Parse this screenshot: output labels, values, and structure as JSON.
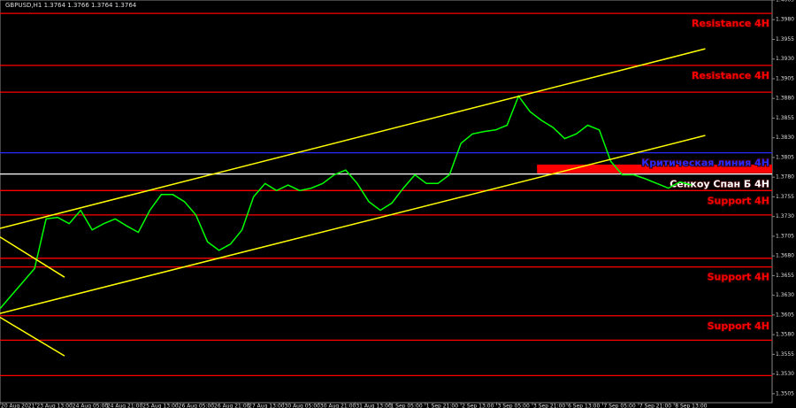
{
  "chart_data": {
    "type": "line",
    "title": "GBPUSD,H1  1.3764 1.3766 1.3764 1.3764",
    "color": "#00ff00",
    "values": [
      1.3613,
      1.363,
      1.3647,
      1.3664,
      1.3727,
      1.3729,
      1.3721,
      1.3738,
      1.3713,
      1.3721,
      1.3727,
      1.3718,
      1.371,
      1.3738,
      1.3758,
      1.3758,
      1.3749,
      1.3732,
      1.3698,
      1.3687,
      1.3695,
      1.3713,
      1.3755,
      1.3772,
      1.3763,
      1.377,
      1.3763,
      1.3766,
      1.3772,
      1.3783,
      1.3789,
      1.3772,
      1.3749,
      1.3738,
      1.3747,
      1.3766,
      1.3783,
      1.3772,
      1.3772,
      1.3783,
      1.3823,
      1.3835,
      1.3838,
      1.384,
      1.3846,
      1.3883,
      1.3863,
      1.3852,
      1.3843,
      1.3829,
      1.3835,
      1.3846,
      1.384,
      1.38,
      1.3783,
      1.3783,
      1.3778,
      1.3772,
      1.3766,
      1.3774,
      1.377
    ],
    "xlim": [
      0,
      67
    ],
    "xticks": [
      {
        "value": 0,
        "label": "20 Aug 2021"
      },
      {
        "value": 3.1,
        "label": "23 Aug 13:00"
      },
      {
        "value": 6.2,
        "label": "24 Aug 05:00"
      },
      {
        "value": 9.2,
        "label": "24 Aug 21:00"
      },
      {
        "value": 12.3,
        "label": "25 Aug 13:00"
      },
      {
        "value": 15.4,
        "label": "26 Aug 05:00"
      },
      {
        "value": 18.5,
        "label": "26 Aug 21:00"
      },
      {
        "value": 21.5,
        "label": "27 Aug 13:00"
      },
      {
        "value": 24.6,
        "label": "30 Aug 05:00"
      },
      {
        "value": 27.7,
        "label": "30 Aug 21:00"
      },
      {
        "value": 30.8,
        "label": "31 Aug 13:00"
      },
      {
        "value": 33.8,
        "label": "1 Sep 05:00"
      },
      {
        "value": 36.9,
        "label": "1 Sep 21:00"
      },
      {
        "value": 40,
        "label": "2 Sep 13:00"
      },
      {
        "value": 43.1,
        "label": "3 Sep 05:00"
      },
      {
        "value": 46.2,
        "label": "3 Sep 21:00"
      },
      {
        "value": 49.2,
        "label": "6 Sep 13:00"
      },
      {
        "value": 52.3,
        "label": "7 Sep 05:00"
      },
      {
        "value": 55.4,
        "label": "7 Sep 21:00"
      },
      {
        "value": 58.5,
        "label": "8 Sep 13:00"
      }
    ],
    "ylim": [
      1.34936,
      1.4005
    ],
    "yticks": [
      1.4005,
      {
        "value": 1.398,
        "label": "1.3980"
      },
      1.3955,
      {
        "value": 1.393,
        "label": "1.3930"
      },
      1.3905,
      {
        "value": 1.388,
        "label": "1.3880"
      },
      1.3855,
      {
        "value": 1.383,
        "label": "1.3830"
      },
      1.3805,
      {
        "value": 1.378,
        "label": "1.3780"
      },
      1.3755,
      {
        "value": 1.373,
        "label": "1.3730"
      },
      1.3705,
      {
        "value": 1.368,
        "label": "1.3680"
      },
      1.3655,
      {
        "value": 1.363,
        "label": "1.3630"
      },
      1.3605,
      {
        "value": 1.358,
        "label": "1.3580"
      },
      1.3555,
      {
        "value": 1.353,
        "label": "1.3530"
      },
      1.3505
    ],
    "levels": [
      {
        "value": 1.3988,
        "color": "#ff0000",
        "label": "Resistance 4H"
      },
      {
        "value": 1.3922,
        "color": "#ff0000",
        "label": "Resistance 4H"
      },
      {
        "value": 1.3888,
        "color": "#ff0000"
      },
      {
        "value": 1.3811,
        "color": "#2a2aff",
        "label": "Критическая линия 4H"
      },
      {
        "value": 1.3784,
        "color": "#ffffff",
        "label": "Сенкоу Спан Б 4H"
      },
      {
        "value": 1.3763,
        "color": "#ff0000",
        "label": "Support 4H"
      },
      {
        "value": 1.3732,
        "color": "#ff0000"
      },
      {
        "value": 1.3677,
        "color": "#ff0000"
      },
      {
        "value": 1.3666,
        "color": "#ff0000",
        "label": "Support 4H"
      },
      {
        "value": 1.3604,
        "color": "#ff0000",
        "label": "Support 4H"
      },
      {
        "value": 1.3573,
        "color": "#ff0000"
      },
      {
        "value": 1.3528,
        "color": "#ff0000"
      }
    ],
    "zones": [
      {
        "ylim": [
          1.3785,
          1.3796
        ],
        "xstart": 46.6,
        "color": "#ff0000"
      }
    ],
    "trendlines": [
      {
        "x": [
          0,
          61.2
        ],
        "y": [
          1.3715,
          1.3943
        ],
        "color": "#ffff00"
      },
      {
        "x": [
          0,
          61.2
        ],
        "y": [
          1.3607,
          1.3833
        ],
        "color": "#ffff00"
      },
      {
        "x": [
          0,
          5.6
        ],
        "y": [
          1.3704,
          1.3653
        ],
        "color": "#ffff00"
      },
      {
        "x": [
          0,
          5.6
        ],
        "y": [
          1.3602,
          1.3553
        ],
        "color": "#ffff00"
      }
    ]
  }
}
